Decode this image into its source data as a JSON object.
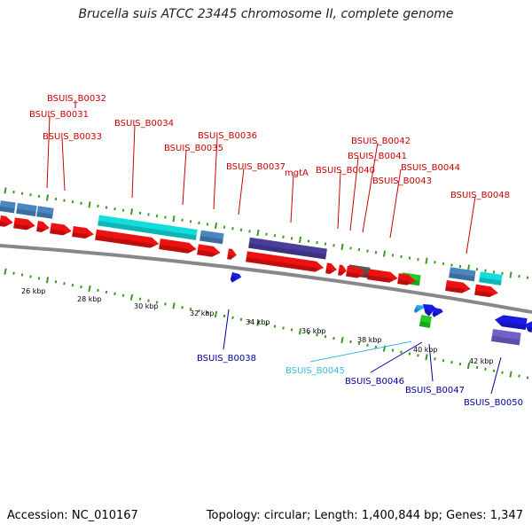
{
  "title": "Brucella suis ATCC 23445 chromosome II, complete genome",
  "footer": {
    "accession_label": "Accession:",
    "accession": "NC_010167",
    "topology_label": "Topology:",
    "topology": "circular",
    "length_label": "Length:",
    "length": "1,400,844 bp",
    "genes_label": "Genes:",
    "genes": "1,347"
  },
  "colors": {
    "forward_cds": "#ee1111",
    "steelblue": "#4a86c0",
    "cyan": "#11dddd",
    "purple": "#4b3d9a",
    "lightpurple": "#7060c8",
    "gray": "#555555",
    "green": "#22cc22",
    "reverse_blue": "#1a1ae6",
    "light_blue": "#22a8ee",
    "ticks": "#3b9a1f",
    "backbone": "#888888",
    "label_red": "#cc0000",
    "label_blue": "#000099",
    "label_cyan": "#33bbdd"
  },
  "kbp_ticks": [
    "26 kbp",
    "28 kbp",
    "30 kbp",
    "32 kbp",
    "34 kbp",
    "36 kbp",
    "38 kbp",
    "40 kbp",
    "42 kbp"
  ],
  "gene_labels": [
    {
      "text": "BSUIS_B0032",
      "color": "label_red"
    },
    {
      "text": "BSUIS_B0031",
      "color": "label_red"
    },
    {
      "text": "BSUIS_B0034",
      "color": "label_red"
    },
    {
      "text": "BSUIS_B0033",
      "color": "label_red"
    },
    {
      "text": "BSUIS_B0036",
      "color": "label_red"
    },
    {
      "text": "BSUIS_B0035",
      "color": "label_red"
    },
    {
      "text": "BSUIS_B0037",
      "color": "label_red"
    },
    {
      "text": "mgtA",
      "color": "label_red"
    },
    {
      "text": "BSUIS_B0042",
      "color": "label_red"
    },
    {
      "text": "BSUIS_B0041",
      "color": "label_red"
    },
    {
      "text": "BSUIS_B0040",
      "color": "label_red"
    },
    {
      "text": "BSUIS_B0044",
      "color": "label_red"
    },
    {
      "text": "BSUIS_B0043",
      "color": "label_red"
    },
    {
      "text": "BSUIS_B0048",
      "color": "label_red"
    },
    {
      "text": "BSUIS_B0038",
      "color": "label_blue"
    },
    {
      "text": "BSUIS_B0045",
      "color": "label_cyan"
    },
    {
      "text": "BSUIS_B0046",
      "color": "label_blue"
    },
    {
      "text": "BSUIS_B0047",
      "color": "label_blue"
    },
    {
      "text": "BSUIS_B0050",
      "color": "label_blue"
    }
  ]
}
